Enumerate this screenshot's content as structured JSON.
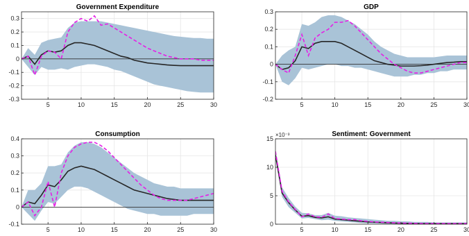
{
  "colors": {
    "band": "#a9c3d7",
    "median": "#262626",
    "dashed": "#e61ee6",
    "zero": "#333333",
    "grid": "#e6e6e6",
    "axis": "#262626"
  },
  "chart_data": [
    {
      "type": "line",
      "title": "Government Expenditure",
      "xlim": [
        1,
        30
      ],
      "ylim": [
        -0.3,
        0.35
      ],
      "xticks": [
        5,
        10,
        15,
        20,
        25,
        30
      ],
      "yticks": [
        -0.3,
        -0.2,
        -0.1,
        0,
        0.1,
        0.2,
        0.3
      ],
      "ytick_labels": [
        "-0.3",
        "-0.2",
        "-0.1",
        "0",
        "0.1",
        "0.2",
        "0.3"
      ],
      "exponent_label": "",
      "x": [
        1,
        2,
        3,
        4,
        5,
        6,
        7,
        8,
        9,
        10,
        11,
        12,
        13,
        14,
        15,
        16,
        17,
        18,
        19,
        20,
        21,
        22,
        23,
        24,
        25,
        26,
        27,
        28,
        29,
        30
      ],
      "band_upper": [
        0.0,
        0.08,
        0.03,
        0.12,
        0.14,
        0.15,
        0.16,
        0.23,
        0.27,
        0.28,
        0.28,
        0.28,
        0.28,
        0.27,
        0.26,
        0.25,
        0.24,
        0.23,
        0.22,
        0.21,
        0.2,
        0.19,
        0.18,
        0.17,
        0.165,
        0.16,
        0.155,
        0.155,
        0.15,
        0.15
      ],
      "band_lower": [
        0.0,
        -0.06,
        -0.12,
        -0.06,
        -0.08,
        -0.08,
        -0.07,
        -0.08,
        -0.06,
        -0.05,
        -0.04,
        -0.04,
        -0.05,
        -0.06,
        -0.08,
        -0.09,
        -0.11,
        -0.13,
        -0.15,
        -0.17,
        -0.19,
        -0.2,
        -0.21,
        -0.22,
        -0.23,
        -0.24,
        -0.245,
        -0.25,
        -0.25,
        -0.25
      ],
      "median": [
        0.0,
        0.02,
        -0.04,
        0.03,
        0.06,
        0.05,
        0.06,
        0.1,
        0.12,
        0.12,
        0.11,
        0.1,
        0.08,
        0.06,
        0.04,
        0.02,
        0.01,
        -0.01,
        -0.02,
        -0.03,
        -0.035,
        -0.04,
        -0.045,
        -0.048,
        -0.05,
        -0.05,
        -0.05,
        -0.05,
        -0.05,
        -0.05
      ],
      "dashed": [
        0.0,
        0.02,
        -0.12,
        0.02,
        0.06,
        0.05,
        0.0,
        0.2,
        0.27,
        0.3,
        0.28,
        0.32,
        0.25,
        0.26,
        0.23,
        0.2,
        0.17,
        0.14,
        0.11,
        0.08,
        0.06,
        0.04,
        0.02,
        0.01,
        0.0,
        0.0,
        0.0,
        -0.01,
        -0.01,
        -0.01
      ]
    },
    {
      "type": "line",
      "title": "GDP",
      "xlim": [
        1,
        30
      ],
      "ylim": [
        -0.2,
        0.3
      ],
      "xticks": [
        5,
        10,
        15,
        20,
        25,
        30
      ],
      "yticks": [
        -0.2,
        -0.1,
        0,
        0.1,
        0.2,
        0.3
      ],
      "ytick_labels": [
        "-0.2",
        "-0.1",
        "0",
        "0.1",
        "0.2",
        "0.3"
      ],
      "exponent_label": "",
      "x": [
        1,
        2,
        3,
        4,
        5,
        6,
        7,
        8,
        9,
        10,
        11,
        12,
        13,
        14,
        15,
        16,
        17,
        18,
        19,
        20,
        21,
        22,
        23,
        24,
        25,
        26,
        27,
        28,
        29,
        30
      ],
      "band_upper": [
        0.0,
        0.05,
        0.08,
        0.1,
        0.23,
        0.22,
        0.24,
        0.27,
        0.28,
        0.28,
        0.27,
        0.25,
        0.23,
        0.2,
        0.17,
        0.13,
        0.1,
        0.08,
        0.06,
        0.05,
        0.04,
        0.04,
        0.04,
        0.04,
        0.04,
        0.045,
        0.05,
        0.05,
        0.05,
        0.05
      ],
      "band_lower": [
        0.0,
        -0.1,
        -0.12,
        -0.08,
        -0.02,
        -0.03,
        -0.02,
        -0.01,
        0.0,
        0.0,
        -0.01,
        -0.01,
        -0.02,
        -0.02,
        -0.03,
        -0.04,
        -0.05,
        -0.06,
        -0.07,
        -0.07,
        -0.07,
        -0.06,
        -0.06,
        -0.05,
        -0.05,
        -0.04,
        -0.04,
        -0.03,
        -0.03,
        -0.03
      ],
      "median": [
        0.0,
        -0.03,
        -0.02,
        0.02,
        0.1,
        0.09,
        0.12,
        0.13,
        0.13,
        0.13,
        0.12,
        0.1,
        0.08,
        0.06,
        0.04,
        0.02,
        0.01,
        0.0,
        -0.005,
        -0.01,
        -0.01,
        -0.01,
        -0.008,
        -0.005,
        0.0,
        0.005,
        0.01,
        0.012,
        0.015,
        0.015
      ],
      "dashed": [
        0.0,
        -0.03,
        -0.05,
        0.05,
        0.17,
        0.05,
        0.15,
        0.18,
        0.2,
        0.24,
        0.24,
        0.25,
        0.22,
        0.18,
        0.14,
        0.1,
        0.06,
        0.03,
        0.0,
        -0.02,
        -0.04,
        -0.05,
        -0.05,
        -0.04,
        -0.03,
        -0.02,
        -0.01,
        0.0,
        0.01,
        0.01
      ]
    },
    {
      "type": "line",
      "title": "Consumption",
      "xlim": [
        1,
        30
      ],
      "ylim": [
        -0.1,
        0.4
      ],
      "xticks": [
        5,
        10,
        15,
        20,
        25,
        30
      ],
      "yticks": [
        -0.1,
        0,
        0.1,
        0.2,
        0.3,
        0.4
      ],
      "ytick_labels": [
        "-0.1",
        "0",
        "0.1",
        "0.2",
        "0.3",
        "0.4"
      ],
      "exponent_label": "",
      "x": [
        1,
        2,
        3,
        4,
        5,
        6,
        7,
        8,
        9,
        10,
        11,
        12,
        13,
        14,
        15,
        16,
        17,
        18,
        19,
        20,
        21,
        22,
        23,
        24,
        25,
        26,
        27,
        28,
        29,
        30
      ],
      "band_upper": [
        0.0,
        0.1,
        0.1,
        0.14,
        0.24,
        0.24,
        0.25,
        0.32,
        0.36,
        0.38,
        0.38,
        0.37,
        0.35,
        0.32,
        0.29,
        0.26,
        0.23,
        0.2,
        0.18,
        0.16,
        0.14,
        0.13,
        0.12,
        0.12,
        0.11,
        0.11,
        0.11,
        0.11,
        0.11,
        0.11
      ],
      "band_lower": [
        0.0,
        -0.04,
        -0.08,
        -0.02,
        0.03,
        0.02,
        0.06,
        0.1,
        0.12,
        0.12,
        0.11,
        0.09,
        0.07,
        0.05,
        0.03,
        0.01,
        -0.01,
        -0.02,
        -0.03,
        -0.04,
        -0.04,
        -0.05,
        -0.05,
        -0.05,
        -0.05,
        -0.05,
        -0.04,
        -0.04,
        -0.04,
        -0.04
      ],
      "median": [
        0.0,
        0.03,
        0.02,
        0.07,
        0.13,
        0.12,
        0.16,
        0.21,
        0.23,
        0.24,
        0.23,
        0.22,
        0.2,
        0.18,
        0.16,
        0.14,
        0.12,
        0.1,
        0.09,
        0.08,
        0.07,
        0.06,
        0.05,
        0.045,
        0.04,
        0.04,
        0.04,
        0.04,
        0.04,
        0.04
      ],
      "dashed": [
        0.0,
        0.03,
        -0.05,
        0.0,
        0.15,
        0.0,
        0.2,
        0.3,
        0.35,
        0.37,
        0.38,
        0.38,
        0.36,
        0.33,
        0.29,
        0.25,
        0.21,
        0.17,
        0.13,
        0.1,
        0.07,
        0.05,
        0.04,
        0.04,
        0.04,
        0.04,
        0.05,
        0.06,
        0.07,
        0.08
      ]
    },
    {
      "type": "line",
      "title": "Sentiment: Government",
      "xlim": [
        1,
        30
      ],
      "ylim": [
        0,
        15
      ],
      "xticks": [
        5,
        10,
        15,
        20,
        25,
        30
      ],
      "yticks": [
        0,
        5,
        10,
        15
      ],
      "ytick_labels": [
        "0",
        "5",
        "10",
        "15"
      ],
      "exponent_label": "×10⁻³",
      "x": [
        1,
        2,
        3,
        4,
        5,
        6,
        7,
        8,
        9,
        10,
        11,
        12,
        13,
        14,
        15,
        16,
        17,
        18,
        19,
        20,
        21,
        22,
        23,
        24,
        25,
        26,
        27,
        28,
        29,
        30
      ],
      "band_upper": [
        13.0,
        6.5,
        4.6,
        3.1,
        2.0,
        1.9,
        1.6,
        1.6,
        2.0,
        1.5,
        1.4,
        1.2,
        1.1,
        1.0,
        0.9,
        0.8,
        0.7,
        0.6,
        0.6,
        0.5,
        0.5,
        0.4,
        0.4,
        0.4,
        0.3,
        0.3,
        0.3,
        0.3,
        0.3,
        0.3
      ],
      "band_lower": [
        11.5,
        4.8,
        3.0,
        2.0,
        1.0,
        1.1,
        0.9,
        0.7,
        0.8,
        0.6,
        0.5,
        0.4,
        0.3,
        0.2,
        0.15,
        0.1,
        0.1,
        0.05,
        0.05,
        0.0,
        0.0,
        0.0,
        0.0,
        0.0,
        0.0,
        0.0,
        0.0,
        0.0,
        0.0,
        0.0
      ],
      "median": [
        12.2,
        5.5,
        3.8,
        2.5,
        1.4,
        1.5,
        1.2,
        1.1,
        1.3,
        0.9,
        0.8,
        0.7,
        0.6,
        0.5,
        0.4,
        0.35,
        0.3,
        0.25,
        0.2,
        0.18,
        0.15,
        0.12,
        0.1,
        0.1,
        0.1,
        0.1,
        0.1,
        0.1,
        0.1,
        0.1
      ],
      "dashed": [
        12.8,
        5.8,
        3.9,
        2.6,
        1.3,
        1.8,
        1.3,
        1.2,
        1.8,
        1.0,
        0.9,
        0.8,
        0.8,
        0.6,
        0.5,
        0.4,
        0.35,
        0.3,
        0.25,
        0.2,
        0.18,
        0.15,
        0.12,
        0.12,
        0.12,
        0.12,
        0.12,
        0.12,
        0.12,
        0.12
      ]
    }
  ]
}
